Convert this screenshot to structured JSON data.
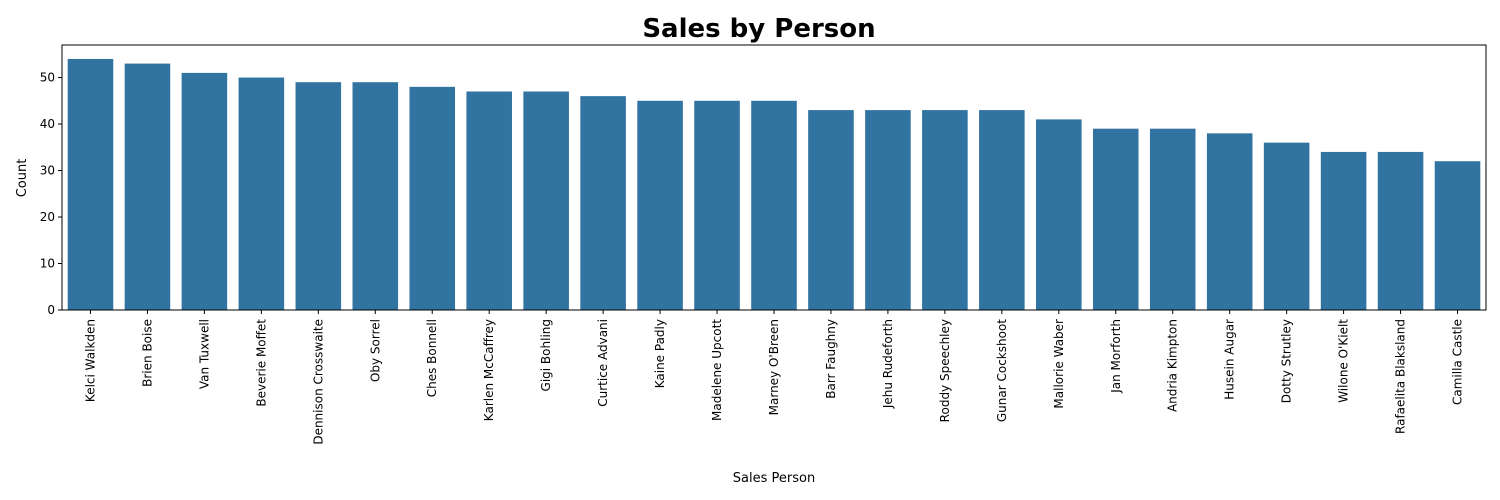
{
  "chart_data": {
    "type": "bar",
    "title": "Sales by Person",
    "xlabel": "Sales Person",
    "ylabel": "Count",
    "ylim": [
      0,
      57
    ],
    "yticks": [
      0,
      10,
      20,
      30,
      40,
      50
    ],
    "bar_color": "#3274a1",
    "grid": false,
    "categories": [
      "Kelci Walkden",
      "Brien Boise",
      "Van Tuxwell",
      "Beverie Moffet",
      "Dennison Crosswaite",
      "Oby Sorrel",
      "Ches Bonnell",
      "Karlen McCaffrey",
      "Gigi Bohling",
      "Curtice Advani",
      "Kaine Padly",
      "Madelene Upcott",
      "Marney O'Breen",
      "Barr Faughny",
      "Jehu Rudeforth",
      "Roddy Speechley",
      "Gunar Cockshoot",
      "Mallorie Waber",
      "Jan Morforth",
      "Andria Kimpton",
      "Husein Augar",
      "Dotty Strutley",
      "Wilone O'Kielt",
      "Rafaelita Blaksland",
      "Camilla Castle"
    ],
    "values": [
      54,
      53,
      51,
      50,
      49,
      49,
      48,
      47,
      47,
      46,
      45,
      45,
      45,
      43,
      43,
      43,
      43,
      41,
      39,
      39,
      38,
      36,
      34,
      34,
      32
    ]
  }
}
